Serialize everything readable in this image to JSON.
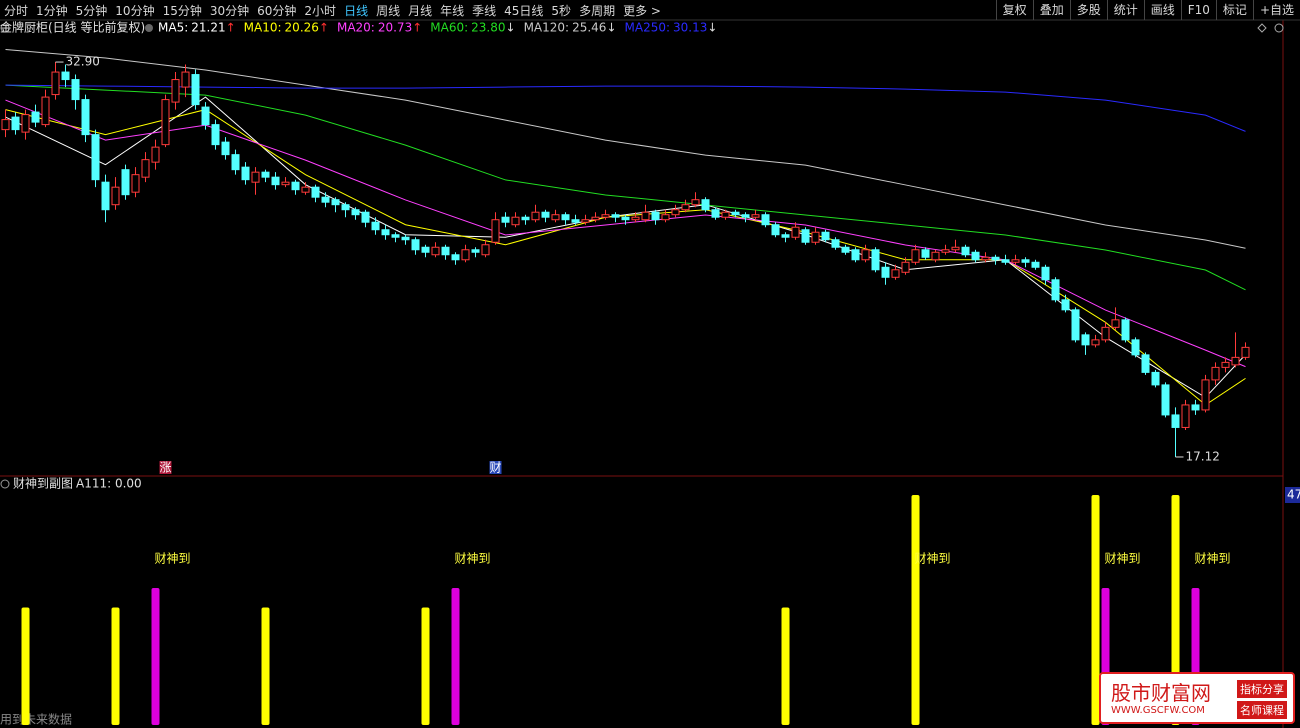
{
  "toolbar": {
    "periods": [
      "分时",
      "1分钟",
      "5分钟",
      "10分钟",
      "15分钟",
      "30分钟",
      "60分钟",
      "2小时",
      "日线",
      "周线",
      "月线",
      "年线",
      "季线",
      "45日线",
      "5秒",
      "多周期",
      "更多 >"
    ],
    "active_index": 8,
    "tools": [
      "复权",
      "叠加",
      "多股",
      "统计",
      "画线",
      "F10",
      "标记",
      "+自选"
    ]
  },
  "price_chart": {
    "type": "candlestick",
    "title": "金牌厨柜(日线 等比前复权)",
    "ylim": [
      16.36,
      34.58
    ],
    "up_color": "#ff3b3b",
    "down_color": "#54ffff",
    "high_label": "32.90",
    "low_label": "17.12",
    "candles": [
      [
        30.2,
        31.0,
        29.9,
        30.6
      ],
      [
        30.7,
        30.9,
        30.0,
        30.2
      ],
      [
        30.1,
        31.0,
        29.8,
        30.8
      ],
      [
        30.9,
        31.2,
        30.3,
        30.5
      ],
      [
        30.4,
        31.8,
        30.3,
        31.5
      ],
      [
        31.6,
        32.9,
        31.4,
        32.5
      ],
      [
        32.5,
        32.8,
        31.9,
        32.2
      ],
      [
        32.2,
        32.4,
        31.0,
        31.4
      ],
      [
        31.4,
        31.6,
        29.7,
        30.0
      ],
      [
        30.0,
        30.2,
        27.9,
        28.2
      ],
      [
        28.1,
        28.4,
        26.5,
        27.0
      ],
      [
        27.2,
        28.3,
        27.0,
        27.9
      ],
      [
        28.6,
        28.8,
        27.4,
        27.6
      ],
      [
        27.7,
        28.7,
        27.5,
        28.4
      ],
      [
        28.3,
        29.3,
        28.1,
        29.0
      ],
      [
        28.9,
        29.8,
        28.6,
        29.5
      ],
      [
        29.6,
        31.6,
        29.5,
        31.4
      ],
      [
        31.3,
        32.5,
        31.0,
        32.2
      ],
      [
        31.9,
        32.8,
        31.5,
        32.5
      ],
      [
        32.4,
        32.6,
        31.0,
        31.2
      ],
      [
        31.1,
        31.3,
        30.2,
        30.4
      ],
      [
        30.4,
        30.6,
        29.4,
        29.6
      ],
      [
        29.7,
        29.9,
        29.0,
        29.2
      ],
      [
        29.2,
        29.4,
        28.4,
        28.6
      ],
      [
        28.7,
        28.9,
        28.0,
        28.2
      ],
      [
        28.1,
        28.7,
        27.6,
        28.5
      ],
      [
        28.5,
        28.6,
        28.1,
        28.3
      ],
      [
        28.3,
        28.5,
        27.8,
        28.0
      ],
      [
        28.0,
        28.3,
        27.9,
        28.1
      ],
      [
        28.1,
        28.2,
        27.6,
        27.8
      ],
      [
        27.7,
        28.1,
        27.6,
        27.9
      ],
      [
        27.9,
        28.0,
        27.3,
        27.5
      ],
      [
        27.5,
        27.7,
        27.1,
        27.3
      ],
      [
        27.4,
        27.5,
        26.9,
        27.2
      ],
      [
        27.2,
        27.3,
        26.7,
        27.0
      ],
      [
        27.0,
        27.1,
        26.6,
        26.8
      ],
      [
        26.9,
        27.0,
        26.3,
        26.5
      ],
      [
        26.5,
        26.7,
        26.0,
        26.2
      ],
      [
        26.2,
        26.4,
        25.8,
        26.0
      ],
      [
        26.0,
        26.1,
        25.7,
        25.9
      ],
      [
        25.9,
        26.0,
        25.6,
        25.8
      ],
      [
        25.8,
        25.9,
        25.2,
        25.4
      ],
      [
        25.5,
        25.6,
        25.1,
        25.3
      ],
      [
        25.2,
        25.7,
        25.1,
        25.5
      ],
      [
        25.5,
        25.6,
        25.0,
        25.2
      ],
      [
        25.2,
        25.3,
        24.8,
        25.0
      ],
      [
        25.0,
        25.6,
        24.9,
        25.4
      ],
      [
        25.4,
        25.5,
        25.1,
        25.3
      ],
      [
        25.2,
        25.8,
        25.1,
        25.6
      ],
      [
        25.7,
        26.9,
        25.6,
        26.6
      ],
      [
        26.7,
        26.9,
        26.3,
        26.5
      ],
      [
        26.4,
        26.9,
        26.3,
        26.7
      ],
      [
        26.7,
        26.8,
        26.4,
        26.6
      ],
      [
        26.6,
        27.2,
        26.5,
        26.9
      ],
      [
        26.9,
        27.0,
        26.5,
        26.7
      ],
      [
        26.6,
        27.0,
        26.5,
        26.8
      ],
      [
        26.8,
        26.9,
        26.4,
        26.6
      ],
      [
        26.6,
        26.8,
        26.4,
        26.5
      ],
      [
        26.5,
        26.8,
        26.4,
        26.6
      ],
      [
        26.6,
        26.9,
        26.5,
        26.7
      ],
      [
        26.7,
        27.0,
        26.6,
        26.8
      ],
      [
        26.8,
        26.9,
        26.5,
        26.7
      ],
      [
        26.7,
        26.8,
        26.4,
        26.6
      ],
      [
        26.6,
        26.9,
        26.5,
        26.7
      ],
      [
        26.6,
        27.2,
        26.5,
        26.9
      ],
      [
        26.9,
        27.0,
        26.4,
        26.6
      ],
      [
        26.6,
        27.0,
        26.5,
        26.8
      ],
      [
        26.8,
        27.2,
        26.7,
        27.0
      ],
      [
        27.0,
        27.4,
        26.9,
        27.2
      ],
      [
        27.2,
        27.7,
        27.1,
        27.4
      ],
      [
        27.4,
        27.5,
        26.9,
        27.0
      ],
      [
        27.0,
        27.1,
        26.6,
        26.7
      ],
      [
        26.7,
        27.0,
        26.6,
        26.9
      ],
      [
        26.9,
        27.0,
        26.7,
        26.8
      ],
      [
        26.8,
        26.9,
        26.5,
        26.7
      ],
      [
        26.7,
        27.0,
        26.6,
        26.8
      ],
      [
        26.8,
        26.9,
        26.3,
        26.4
      ],
      [
        26.4,
        26.5,
        25.9,
        26.0
      ],
      [
        26.0,
        26.1,
        25.7,
        25.9
      ],
      [
        25.9,
        26.5,
        25.8,
        26.3
      ],
      [
        26.2,
        26.3,
        25.6,
        25.7
      ],
      [
        25.7,
        26.3,
        25.6,
        26.1
      ],
      [
        26.1,
        26.2,
        25.7,
        25.8
      ],
      [
        25.8,
        25.9,
        25.4,
        25.5
      ],
      [
        25.5,
        25.6,
        25.2,
        25.3
      ],
      [
        25.4,
        25.5,
        24.9,
        25.0
      ],
      [
        25.0,
        25.6,
        24.9,
        25.4
      ],
      [
        25.4,
        25.5,
        24.5,
        24.6
      ],
      [
        24.7,
        24.9,
        24.0,
        24.3
      ],
      [
        24.3,
        24.8,
        24.2,
        24.6
      ],
      [
        24.5,
        25.1,
        24.4,
        24.9
      ],
      [
        24.9,
        25.6,
        24.8,
        25.4
      ],
      [
        25.4,
        25.5,
        25.0,
        25.1
      ],
      [
        25.0,
        25.4,
        24.9,
        25.3
      ],
      [
        25.3,
        25.6,
        25.2,
        25.4
      ],
      [
        25.4,
        25.8,
        25.3,
        25.5
      ],
      [
        25.5,
        25.6,
        25.1,
        25.2
      ],
      [
        25.3,
        25.4,
        24.9,
        25.0
      ],
      [
        25.0,
        25.3,
        24.9,
        25.1
      ],
      [
        25.1,
        25.2,
        24.8,
        25.0
      ],
      [
        25.0,
        25.2,
        24.8,
        24.9
      ],
      [
        24.9,
        25.2,
        24.8,
        25.0
      ],
      [
        25.0,
        25.1,
        24.7,
        24.9
      ],
      [
        24.9,
        25.0,
        24.6,
        24.7
      ],
      [
        24.7,
        24.8,
        24.0,
        24.2
      ],
      [
        24.2,
        24.3,
        23.3,
        23.4
      ],
      [
        23.4,
        23.6,
        22.9,
        23.0
      ],
      [
        23.0,
        23.1,
        21.7,
        21.8
      ],
      [
        22.0,
        22.1,
        21.2,
        21.6
      ],
      [
        21.6,
        22.0,
        21.5,
        21.8
      ],
      [
        21.8,
        22.5,
        21.7,
        22.3
      ],
      [
        22.3,
        23.1,
        22.2,
        22.6
      ],
      [
        22.6,
        22.7,
        21.7,
        21.8
      ],
      [
        21.8,
        21.9,
        21.1,
        21.2
      ],
      [
        21.2,
        21.3,
        20.4,
        20.5
      ],
      [
        20.5,
        20.6,
        19.9,
        20.0
      ],
      [
        20.0,
        20.1,
        18.7,
        18.8
      ],
      [
        18.8,
        19.1,
        17.12,
        18.3
      ],
      [
        18.3,
        19.4,
        18.2,
        19.2
      ],
      [
        19.2,
        19.4,
        18.8,
        19.0
      ],
      [
        19.0,
        20.4,
        18.9,
        20.2
      ],
      [
        20.2,
        20.9,
        20.0,
        20.7
      ],
      [
        20.7,
        21.1,
        20.5,
        20.9
      ],
      [
        20.8,
        22.1,
        20.7,
        21.1
      ],
      [
        21.1,
        21.7,
        21.0,
        21.5
      ]
    ],
    "ma_x": [
      0,
      10,
      20,
      30,
      40,
      50,
      60,
      70,
      80,
      90,
      100,
      110,
      120,
      124
    ],
    "ma_lines": [
      {
        "name": "MA5:",
        "value_label": "21.21",
        "arrow": "↑",
        "color": "#ffffff",
        "values": [
          30.7,
          28.8,
          31.5,
          28.0,
          26.0,
          25.9,
          26.7,
          27.2,
          26.0,
          24.6,
          25.0,
          21.9,
          19.5,
          21.21
        ]
      },
      {
        "name": "MA10:",
        "value_label": "20.26",
        "arrow": "↑",
        "color": "#ffff00",
        "values": [
          31.0,
          30.0,
          31.0,
          28.4,
          26.4,
          25.6,
          26.7,
          27.0,
          26.1,
          25.0,
          25.0,
          22.5,
          19.2,
          20.26
        ]
      },
      {
        "name": "MA20:",
        "value_label": "20.73",
        "arrow": "↑",
        "color": "#ff40ff",
        "values": [
          31.38,
          29.78,
          30.38,
          28.98,
          27.39,
          25.99,
          26.39,
          26.79,
          26.39,
          25.59,
          24.99,
          22.99,
          21.39,
          20.73
        ]
      },
      {
        "name": "MA60:",
        "value_label": "23.80",
        "arrow": "↓",
        "color": "#22dd22",
        "values": [
          31.98,
          31.78,
          31.58,
          30.78,
          29.58,
          28.19,
          27.59,
          27.19,
          26.79,
          26.39,
          25.99,
          25.39,
          24.59,
          23.8
        ]
      },
      {
        "name": "MA120:",
        "value_label": "25.46",
        "arrow": "↓",
        "color": "#c8c8c8",
        "values": [
          33.4,
          33.06,
          32.58,
          31.98,
          31.38,
          30.58,
          29.78,
          29.18,
          28.78,
          27.99,
          27.19,
          26.39,
          25.79,
          25.46
        ]
      },
      {
        "name": "MA250:",
        "value_label": "30.13",
        "arrow": "↓",
        "color": "#2a2aff",
        "values": [
          31.98,
          31.94,
          31.9,
          31.86,
          31.86,
          31.9,
          31.94,
          31.94,
          31.9,
          31.82,
          31.7,
          31.38,
          30.78,
          30.13
        ]
      }
    ],
    "markers": [
      {
        "index": 16,
        "label": "涨",
        "color": "#b0183a"
      },
      {
        "index": 49,
        "label": "财",
        "color": "#2848b8"
      }
    ]
  },
  "sub_chart": {
    "type": "bar",
    "title": "财神到副图",
    "indicator": "A111: 0.00",
    "ylim": [
      0,
      47
    ],
    "yticks": [
      47
    ],
    "bars": [
      {
        "index": 2,
        "value": 24,
        "color": "#ffff00"
      },
      {
        "index": 11,
        "value": 24,
        "color": "#ffff00"
      },
      {
        "index": 15,
        "value": 28,
        "color": "#dd00dd"
      },
      {
        "index": 26,
        "value": 24,
        "color": "#ffff00"
      },
      {
        "index": 42,
        "value": 24,
        "color": "#ffff00"
      },
      {
        "index": 45,
        "value": 28,
        "color": "#dd00dd"
      },
      {
        "index": 78,
        "value": 24,
        "color": "#ffff00"
      },
      {
        "index": 91,
        "value": 47,
        "color": "#ffff00"
      },
      {
        "index": 109,
        "value": 47,
        "color": "#ffff00"
      },
      {
        "index": 110,
        "value": 28,
        "color": "#dd00dd"
      },
      {
        "index": 117,
        "value": 47,
        "color": "#ffff00"
      },
      {
        "index": 119,
        "value": 28,
        "color": "#dd00dd"
      }
    ],
    "signals": [
      {
        "index": 15,
        "label": "财神到"
      },
      {
        "index": 45,
        "label": "财神到"
      },
      {
        "index": 91,
        "label": "财神到"
      },
      {
        "index": 110,
        "label": "财神到"
      },
      {
        "index": 119,
        "label": "财神到"
      }
    ]
  },
  "footer_text": "用到未来数据",
  "watermark": {
    "name": "股市财富网",
    "url": "WWW.GSCFW.COM",
    "tags": [
      "指标分享",
      "名师课程"
    ]
  }
}
